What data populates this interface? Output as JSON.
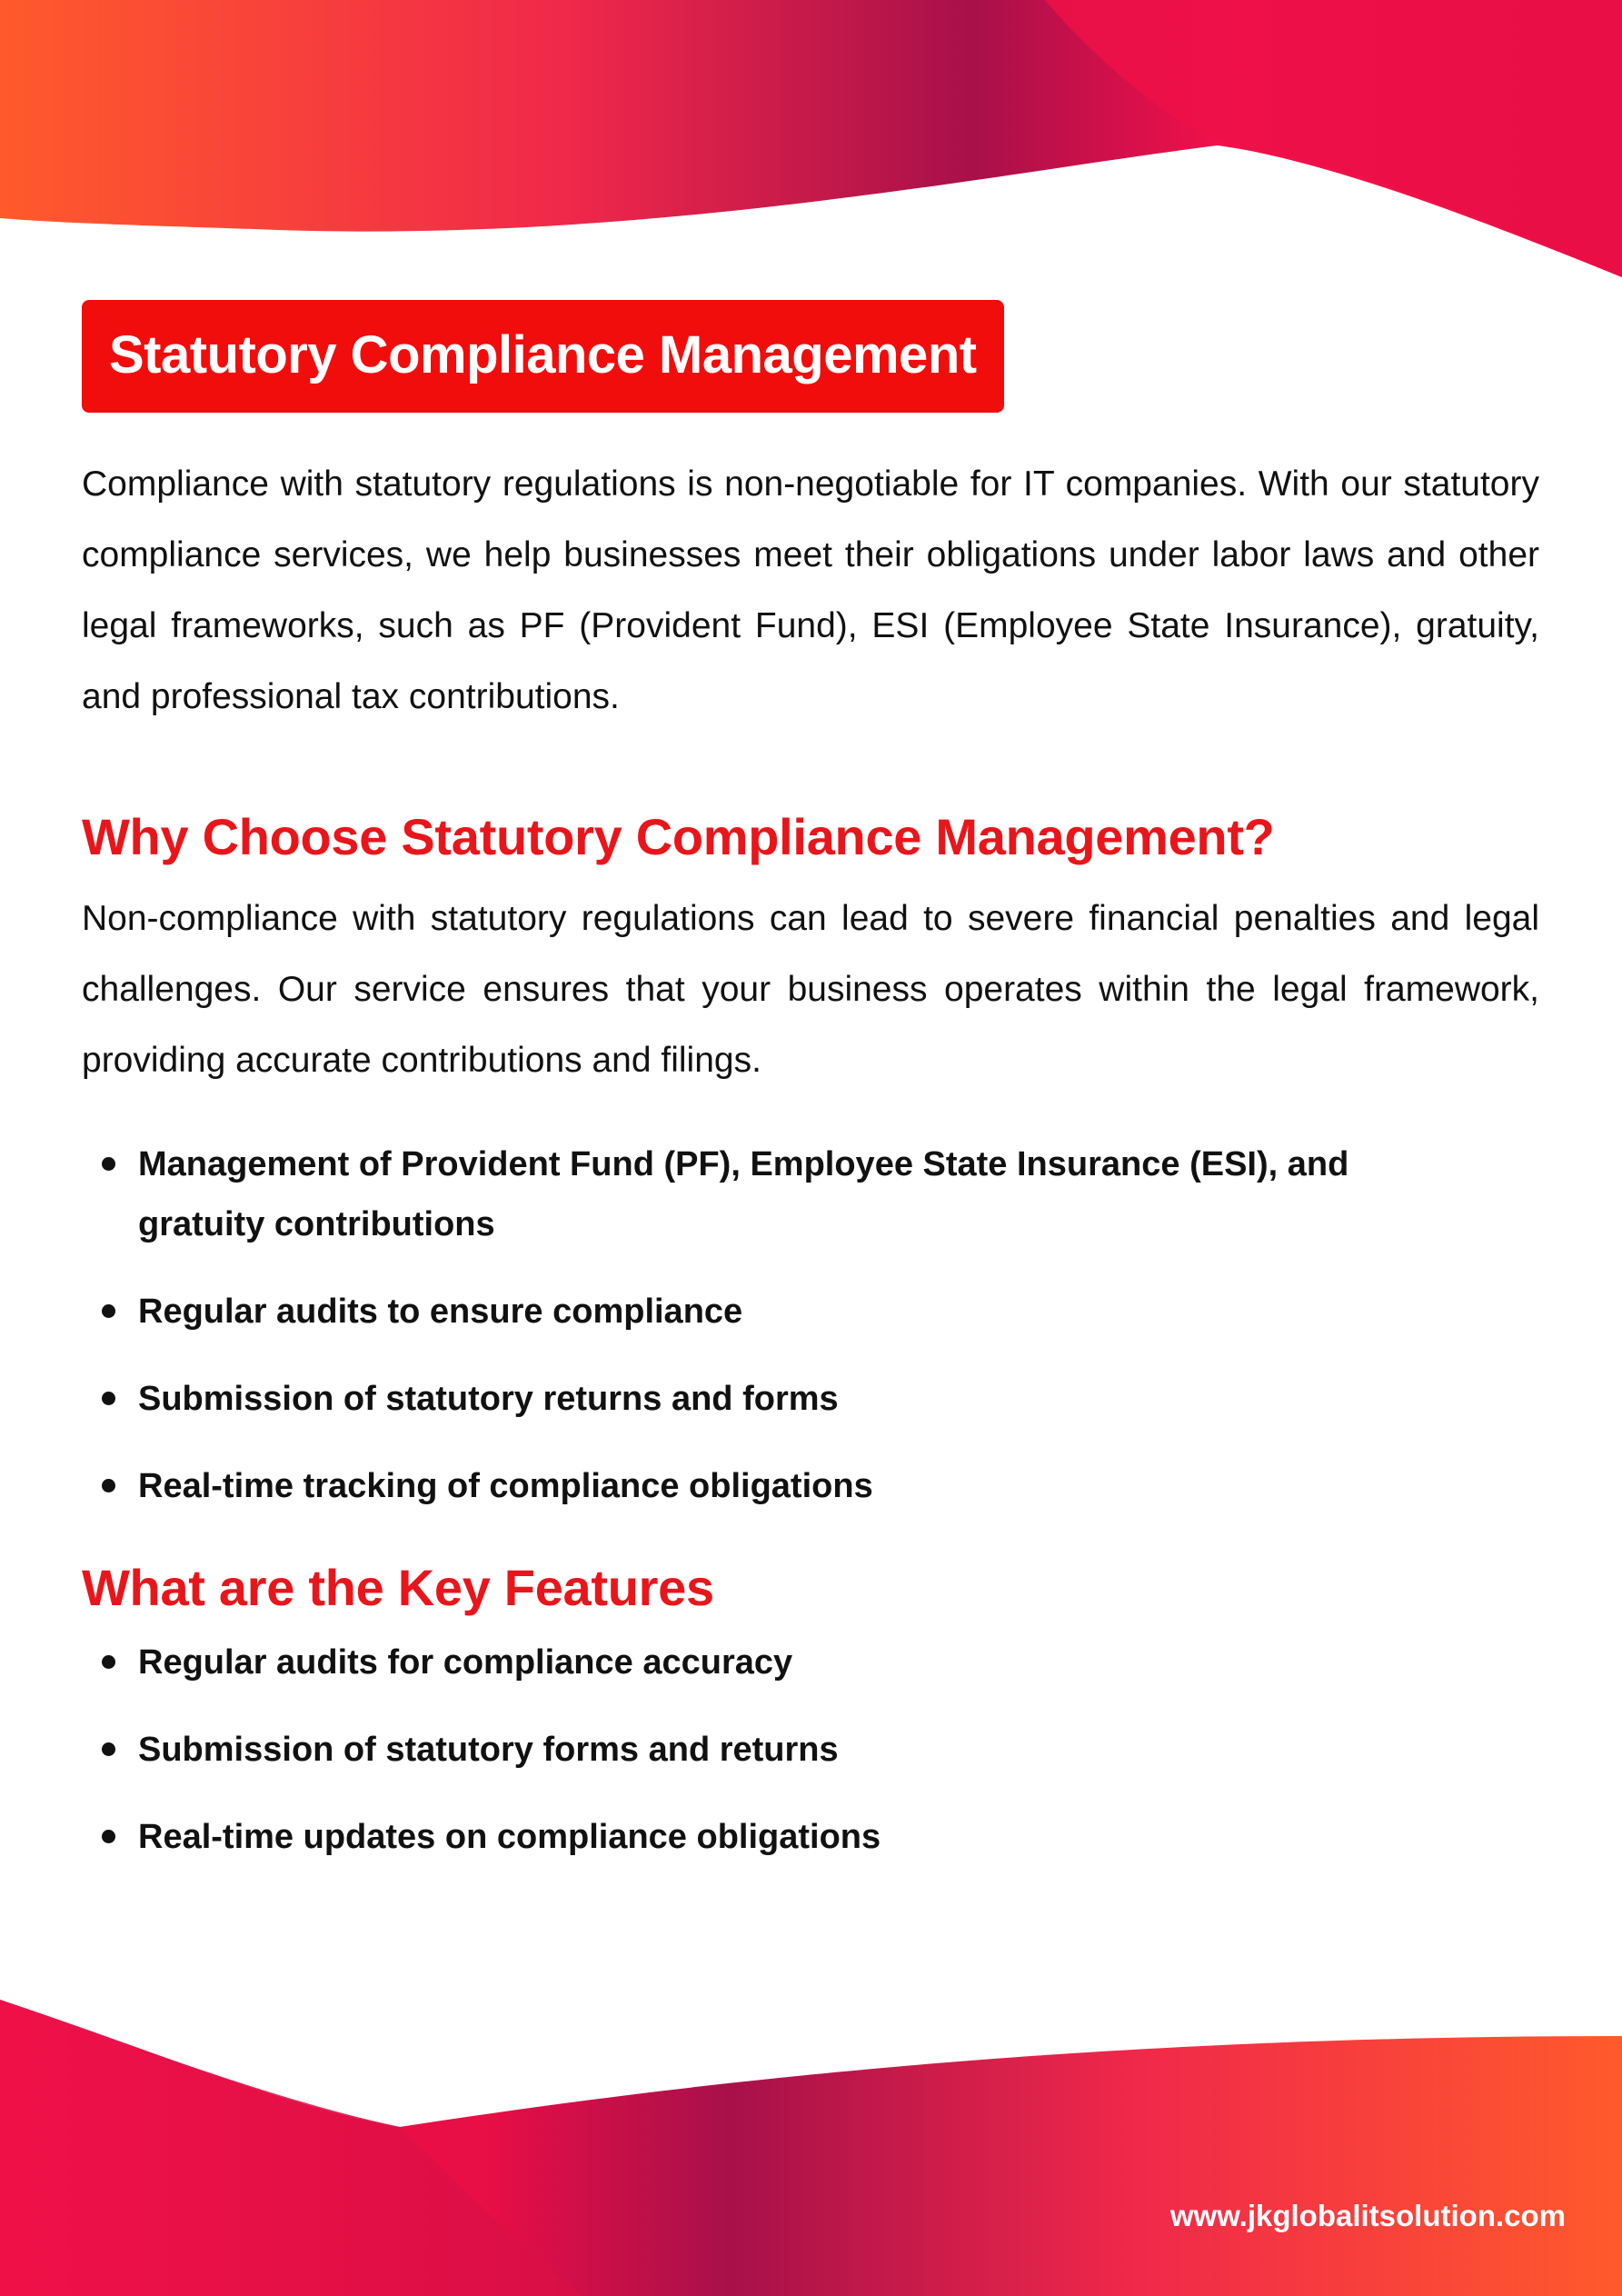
{
  "colors": {
    "accent_red": "#f20d0d",
    "heading_red": "#e8161b",
    "wave_orange": "#ff5a2c",
    "wave_crimson": "#b0124a",
    "wave_pink": "#f0104a"
  },
  "title": "Statutory Compliance Management",
  "intro": "Compliance with statutory regulations is non-negotiable for IT companies. With our statutory compliance services, we help businesses meet their obligations under labor laws and other legal frameworks, such as PF (Provident Fund), ESI (Employee State Insurance), gratuity, and professional tax contributions.",
  "why": {
    "heading": "Why Choose Statutory Compliance Management?",
    "paragraph": "Non-compliance with statutory regulations can lead to severe financial penalties and legal challenges. Our service ensures that your business operates within the legal framework, providing accurate contributions and filings.",
    "bullets": [
      "Management of Provident Fund (PF), Employee State Insurance (ESI), and gratuity contributions",
      "Regular audits to ensure compliance",
      "Submission of statutory returns and forms",
      "Real-time tracking of compliance obligations"
    ]
  },
  "features": {
    "heading": "What are the Key Features",
    "bullets": [
      "Regular audits for compliance accuracy",
      "Submission of statutory forms and returns",
      "Real-time updates on compliance obligations"
    ]
  },
  "footer": {
    "website": "www.jkglobalitsolution.com"
  }
}
